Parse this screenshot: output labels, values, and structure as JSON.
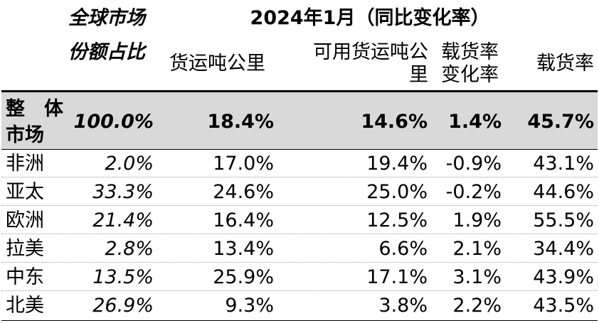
{
  "header": {
    "share_line1": "全球市场",
    "share_line2": "份额占比",
    "period": "2024年1月（同比变化率）",
    "col_rtk": "货运吨公里",
    "col_ctk_line1": "可用货运吨公",
    "col_ctk_line2": "里",
    "col_lfchg_line1": "载货率",
    "col_lfchg_line2": "变化率",
    "col_lf": "载货率"
  },
  "total": {
    "label_line1": "整　体",
    "label_line2": "市场",
    "share": "100.0%",
    "rtk": "18.4%",
    "ctk": "14.6%",
    "lf_change": "1.4%",
    "lf": "45.7%"
  },
  "rows": [
    {
      "region": "非洲",
      "share": "2.0%",
      "rtk": "17.0%",
      "ctk": "19.4%",
      "lf_change": "-0.9%",
      "lf": "43.1%"
    },
    {
      "region": "亚太",
      "share": "33.3%",
      "rtk": "24.6%",
      "ctk": "25.0%",
      "lf_change": "-0.2%",
      "lf": "44.6%"
    },
    {
      "region": "欧洲",
      "share": "21.4%",
      "rtk": "16.4%",
      "ctk": "12.5%",
      "lf_change": "1.9%",
      "lf": "55.5%"
    },
    {
      "region": "拉美",
      "share": "2.8%",
      "rtk": "13.4%",
      "ctk": "6.6%",
      "lf_change": "2.1%",
      "lf": "34.4%"
    },
    {
      "region": "中东",
      "share": "13.5%",
      "rtk": "25.9%",
      "ctk": "17.1%",
      "lf_change": "3.1%",
      "lf": "43.9%"
    },
    {
      "region": "北美",
      "share": "26.9%",
      "rtk": "9.3%",
      "ctk": "3.8%",
      "lf_change": "2.2%",
      "lf": "43.5%"
    }
  ]
}
